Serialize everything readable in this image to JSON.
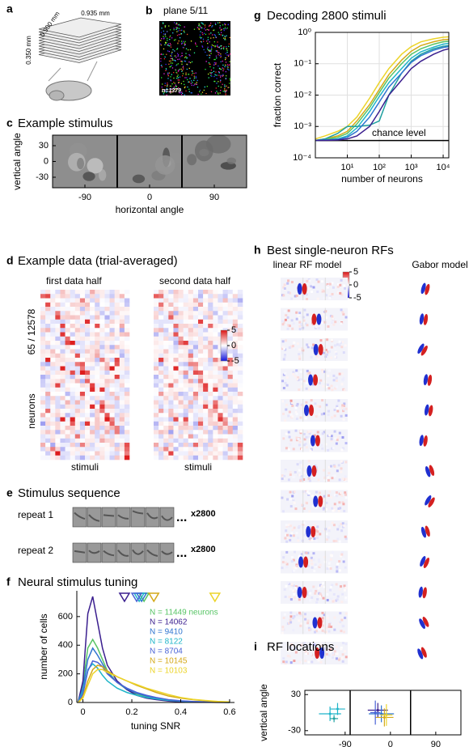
{
  "figure": {
    "a": {
      "label": "a",
      "width": "0.935 mm",
      "depth": "0.900 mm",
      "height": "0.350 mm"
    },
    "b": {
      "label": "b",
      "title": "plane 5/11",
      "count": "n=1379"
    },
    "e": {
      "label": "e",
      "title": "Stimulus sequence",
      "rows": [
        {
          "label": "repeat 1",
          "more": "...",
          "count": "x2800"
        },
        {
          "label": "repeat 2",
          "more": "...",
          "count": "x2800"
        }
      ]
    }
  },
  "chart_data": [
    {
      "type": "image",
      "panel_label": "c",
      "title": "Example stimulus",
      "xlabel": "horizontal angle",
      "ylabel": "vertical angle",
      "xlim": [
        -135,
        135
      ],
      "ylim": [
        -50,
        50
      ],
      "xticks": [
        -90,
        0,
        90
      ],
      "yticks": [
        -30,
        0,
        30
      ]
    },
    {
      "type": "heatmap",
      "panel_label": "d",
      "title": "Example data (trial-averaged)",
      "subtitles": [
        "first data half",
        "second data half"
      ],
      "xlabels": [
        "stimuli",
        "stimuli"
      ],
      "ylabel": "neurons",
      "ylabel_count": "65 / 12578",
      "colorbar_ticks": [
        5,
        0,
        -5
      ]
    },
    {
      "type": "line",
      "panel_label": "f",
      "title": "Neural stimulus tuning",
      "xlabel": "tuning SNR",
      "ylabel": "number of cells",
      "xlim": [
        -0.025,
        0.62
      ],
      "ylim": [
        0,
        780
      ],
      "xticks": [
        0,
        0.2,
        0.4,
        0.6
      ],
      "yticks": [
        0,
        200,
        400,
        600
      ],
      "grid": false,
      "x": [
        -0.02,
        0,
        0.02,
        0.04,
        0.06,
        0.08,
        0.1,
        0.14,
        0.18,
        0.22,
        0.26,
        0.3,
        0.35,
        0.4,
        0.45,
        0.5,
        0.55,
        0.6
      ],
      "series": [
        {
          "name": "N = 11449 neurons",
          "color": "#57c465",
          "marker": 0.25,
          "values": [
            0,
            130,
            380,
            440,
            380,
            300,
            220,
            140,
            90,
            60,
            40,
            25,
            15,
            8,
            5,
            3,
            2,
            1
          ]
        },
        {
          "name": "N = 14062",
          "color": "#3b1f8f",
          "marker": 0.17,
          "values": [
            0,
            150,
            620,
            740,
            560,
            380,
            260,
            150,
            90,
            50,
            30,
            20,
            10,
            5,
            3,
            2,
            1,
            0
          ]
        },
        {
          "name": "N = 9410",
          "color": "#2f74d0",
          "marker": 0.24,
          "values": [
            0,
            100,
            300,
            380,
            330,
            270,
            210,
            140,
            95,
            65,
            45,
            30,
            18,
            10,
            6,
            4,
            2,
            1
          ]
        },
        {
          "name": "N = 8122",
          "color": "#1fb5c9",
          "marker": 0.23,
          "values": [
            0,
            80,
            230,
            270,
            240,
            190,
            150,
            100,
            70,
            50,
            35,
            25,
            15,
            10,
            6,
            4,
            2,
            1
          ]
        },
        {
          "name": "N = 8704",
          "color": "#4a63d6",
          "marker": 0.22,
          "values": [
            0,
            60,
            220,
            290,
            280,
            250,
            200,
            140,
            100,
            70,
            50,
            35,
            20,
            12,
            7,
            4,
            2,
            1
          ]
        },
        {
          "name": "N = 10145",
          "color": "#d4a919",
          "marker": 0.29,
          "values": [
            0,
            40,
            150,
            230,
            260,
            250,
            220,
            180,
            150,
            120,
            95,
            70,
            45,
            30,
            20,
            12,
            6,
            3
          ]
        },
        {
          "name": "N = 10103",
          "color": "#ecd42a",
          "marker": 0.54,
          "values": [
            0,
            30,
            120,
            200,
            230,
            230,
            210,
            180,
            150,
            125,
            100,
            80,
            55,
            35,
            22,
            14,
            8,
            4
          ]
        }
      ]
    },
    {
      "type": "line",
      "panel_label": "g",
      "title": "Decoding 2800 stimuli",
      "xlabel": "number of neurons",
      "ylabel": "fraction correct",
      "xscale": "log",
      "yscale": "log",
      "grid": true,
      "xlim": [
        1,
        15000
      ],
      "ylim": [
        0.0001,
        1
      ],
      "xticks": [
        {
          "value": 10,
          "label": "10¹"
        },
        {
          "value": 100,
          "label": "10²"
        },
        {
          "value": 1000,
          "label": "10³"
        },
        {
          "value": 10000,
          "label": "10⁴"
        }
      ],
      "yticks": [
        {
          "value": 0.0001,
          "label": "10⁻⁴"
        },
        {
          "value": 0.001,
          "label": "10⁻³"
        },
        {
          "value": 0.01,
          "label": "10⁻²"
        },
        {
          "value": 0.1,
          "label": "10⁻¹"
        },
        {
          "value": 1,
          "label": "10⁰"
        }
      ],
      "chance": {
        "value": 0.000357,
        "label": "chance level"
      },
      "x": [
        1,
        2,
        5,
        10,
        20,
        50,
        100,
        200,
        500,
        1000,
        2000,
        5000,
        10000,
        15000
      ],
      "series": [
        {
          "color": "#ecd42a",
          "values": [
            0.0004,
            0.0005,
            0.0007,
            0.001,
            0.002,
            0.008,
            0.025,
            0.07,
            0.2,
            0.35,
            0.5,
            0.62,
            0.7,
            0.72
          ]
        },
        {
          "color": "#d4a919",
          "values": [
            0.00036,
            0.0004,
            0.0005,
            0.0007,
            0.0015,
            0.005,
            0.015,
            0.045,
            0.13,
            0.25,
            0.38,
            0.5,
            0.58,
            0.6
          ]
        },
        {
          "color": "#57c465",
          "values": [
            0.00036,
            0.00038,
            0.00045,
            0.0006,
            0.0012,
            0.004,
            0.012,
            0.035,
            0.1,
            0.2,
            0.3,
            0.42,
            0.5,
            0.52
          ]
        },
        {
          "color": "#1fb5c9",
          "values": [
            0.00036,
            0.00037,
            0.0004,
            0.0005,
            0.0009,
            0.003,
            0.009,
            0.025,
            0.07,
            0.15,
            0.24,
            0.34,
            0.42,
            0.45
          ]
        },
        {
          "color": "#20a0a0",
          "values": [
            0.00036,
            0.0004,
            0.0006,
            0.001,
            0.001,
            0.0011,
            0.0015,
            0.01,
            0.05,
            0.12,
            0.2,
            0.3,
            0.36,
            0.38
          ]
        },
        {
          "color": "#2f74d0",
          "values": [
            0.00036,
            0.00037,
            0.00039,
            0.00045,
            0.0007,
            0.002,
            0.006,
            0.018,
            0.05,
            0.11,
            0.18,
            0.27,
            0.33,
            0.35
          ]
        },
        {
          "color": "#3b1f8f",
          "values": [
            0.00036,
            0.00036,
            0.00037,
            0.0004,
            0.0005,
            0.001,
            0.003,
            0.01,
            0.03,
            0.07,
            0.12,
            0.2,
            0.27,
            0.3
          ]
        }
      ]
    },
    {
      "type": "rf-gallery",
      "panel_label": "h",
      "title": "Best single-neuron RFs",
      "columns": [
        "linear RF model",
        "Gabor model"
      ],
      "colorbar_ticks": [
        5,
        0,
        -5
      ]
    },
    {
      "type": "errorbar",
      "panel_label": "i",
      "title": "RF locations",
      "xlabel": "horizontal angle",
      "ylabel": "vertical angle",
      "xlim": [
        -170,
        140
      ],
      "ylim": [
        -37,
        37
      ],
      "xticks": [
        -90,
        0,
        90
      ],
      "yticks": [
        -30,
        30
      ],
      "vlines": [
        -80,
        40
      ],
      "points": [
        {
          "color": "#1fb5c9",
          "x": -120,
          "y": -2,
          "xerr": 22,
          "yerr": 12
        },
        {
          "color": "#1fb5c9",
          "x": -105,
          "y": 6,
          "xerr": 15,
          "yerr": 10
        },
        {
          "color": "#20a0a0",
          "x": -112,
          "y": -10,
          "xerr": 8,
          "yerr": 6
        },
        {
          "color": "#3b1f8f",
          "x": -25,
          "y": 4,
          "xerr": 20,
          "yerr": 12
        },
        {
          "color": "#2f74d0",
          "x": -18,
          "y": -2,
          "xerr": 25,
          "yerr": 14
        },
        {
          "color": "#d4a919",
          "x": -12,
          "y": -8,
          "xerr": 18,
          "yerr": 15
        },
        {
          "color": "#ecd42a",
          "x": -8,
          "y": -4,
          "xerr": 12,
          "yerr": 18
        },
        {
          "color": "#4a63d6",
          "x": -30,
          "y": 0,
          "xerr": 10,
          "yerr": 20
        }
      ]
    }
  ]
}
